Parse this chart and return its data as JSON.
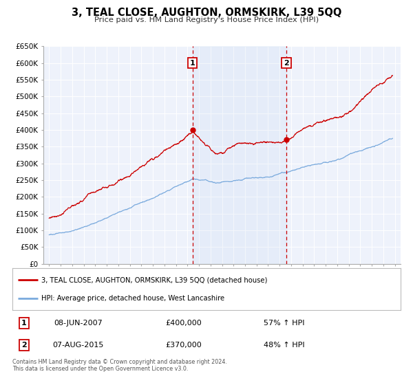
{
  "title": "3, TEAL CLOSE, AUGHTON, ORMSKIRK, L39 5QQ",
  "subtitle": "Price paid vs. HM Land Registry's House Price Index (HPI)",
  "red_label": "3, TEAL CLOSE, AUGHTON, ORMSKIRK, L39 5QQ (detached house)",
  "blue_label": "HPI: Average price, detached house, West Lancashire",
  "legend1_date": "08-JUN-2007",
  "legend1_price": "£400,000",
  "legend1_hpi": "57% ↑ HPI",
  "legend2_date": "07-AUG-2015",
  "legend2_price": "£370,000",
  "legend2_hpi": "48% ↑ HPI",
  "footer": "Contains HM Land Registry data © Crown copyright and database right 2024.\nThis data is licensed under the Open Government Licence v3.0.",
  "sale1_year": 2007.44,
  "sale1_price": 400000,
  "sale2_year": 2015.59,
  "sale2_price": 370000,
  "ylim": [
    0,
    650000
  ],
  "xlim_start": 1994.5,
  "xlim_end": 2025.5,
  "background_color": "#ffffff",
  "plot_bg_color": "#eef2fb",
  "grid_color": "#ffffff",
  "red_color": "#cc0000",
  "blue_color": "#7aaadd",
  "dashed_color": "#cc0000"
}
